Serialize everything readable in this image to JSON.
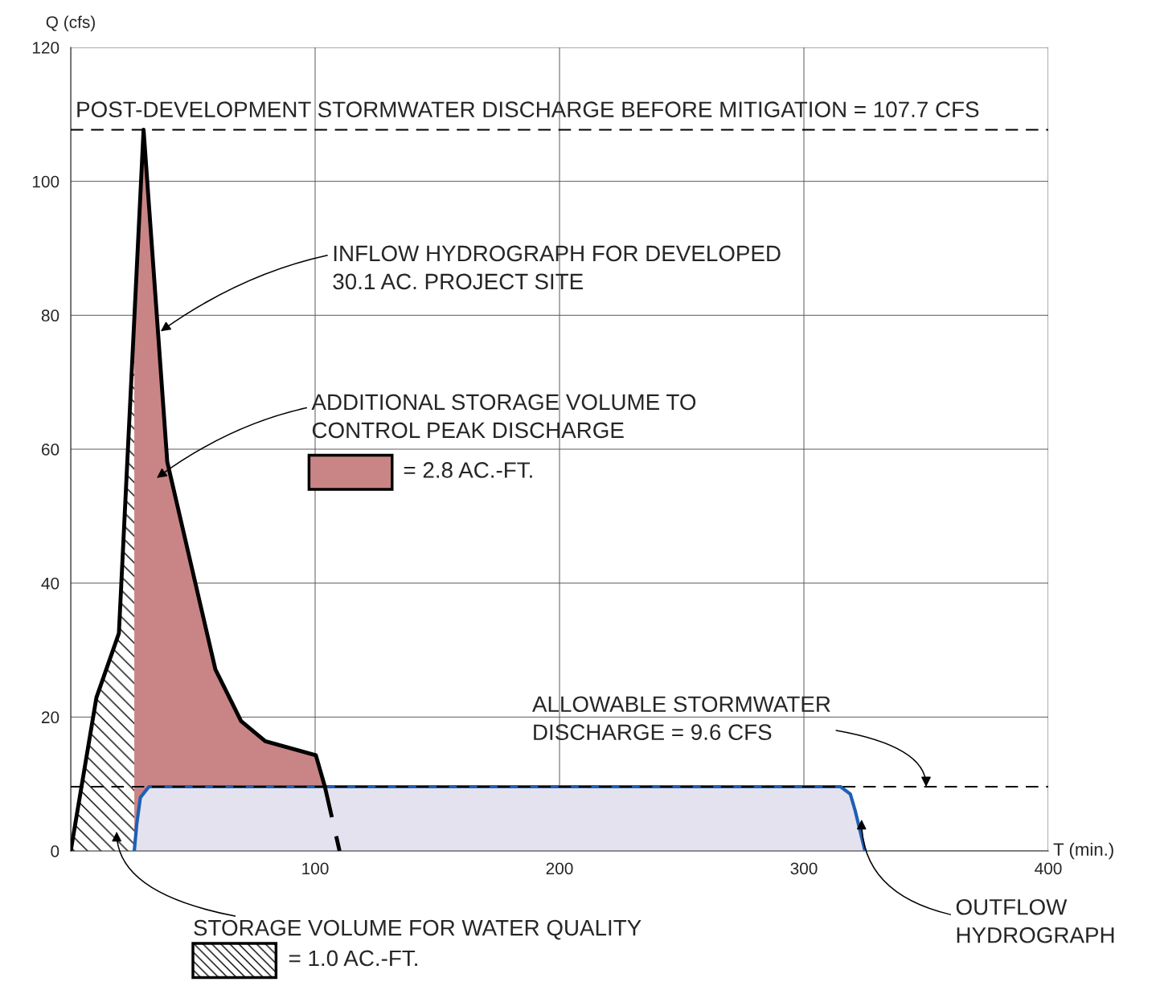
{
  "chart_data": {
    "type": "area",
    "xlabel": "T (min.)",
    "ylabel": "Q (cfs)",
    "xlim": [
      0,
      400
    ],
    "ylim": [
      0,
      120
    ],
    "xticks": [
      {
        "value": 0,
        "label": null
      },
      100,
      200,
      300,
      400
    ],
    "yticks": [
      0,
      20,
      40,
      60,
      80,
      100,
      120
    ],
    "grid": true,
    "series": [
      {
        "color": "#000000",
        "x": [
          0,
          10.5,
          19.7,
          26
        ],
        "values": [
          0,
          22.9,
          32.5,
          79
        ]
      },
      {
        "color": "#c98585",
        "x": [
          26,
          29.8,
          39.5,
          59.2,
          69.7,
          79.6,
          100.3,
          104
        ],
        "values": [
          79,
          107.7,
          58.1,
          27.1,
          19.4,
          16.4,
          14.3,
          9.6
        ]
      },
      {
        "color": "#1f5fb4",
        "x": [
          26,
          27,
          28.5,
          32,
          315,
          319,
          321,
          325
        ],
        "values": [
          0,
          4,
          8,
          9.6,
          9.6,
          8.5,
          6,
          0
        ]
      },
      {
        "type": "line",
        "color": "#000000",
        "x": [
          0,
          10.5,
          19.7,
          29.8,
          39.5,
          59.2,
          69.7,
          79.6,
          100.3,
          104
        ],
        "values": [
          0,
          22.9,
          32.5,
          107.7,
          58.1,
          27.1,
          19.4,
          16.4,
          14.3,
          9.6
        ],
        "line_style": "solid"
      },
      {
        "type": "line",
        "color": "#000000",
        "x": [
          104,
          110
        ],
        "values": [
          9.6,
          0
        ],
        "line_style": "dashed"
      }
    ],
    "ref_lines": [
      {
        "axis": "y",
        "value": 107.7,
        "label": "POST-DEVELOPMENT STORMWATER DISCHARGE BEFORE MITIGATION = 107.7 CFS",
        "line_style": "dashed",
        "color": "#000000"
      },
      {
        "axis": "y",
        "value": 9.6,
        "line_style": "dashed",
        "color": "#000000"
      }
    ],
    "annotations": [
      {
        "text": "INFLOW HYDROGRAPH FOR DEVELOPED\n30.1 AC. PROJECT SITE",
        "x": 36.8,
        "y": 77.6
      },
      "ADDITIONAL STORAGE VOLUME TO\nCONTROL PEAK DISCHARGE",
      {
        "text": "ALLOWABLE STORMWATER\nDISCHARGE = 9.6 CFS",
        "x": 350,
        "y": 9.6
      },
      {
        "text": "OUTFLOW\nHYDROGRAPH",
        "x": 323.6,
        "y": 4.7
      },
      "STORAGE VOLUME FOR WATER QUALITY",
      "= 2.8 AC.-FT.",
      "= 1.0 AC.-FT."
    ]
  }
}
